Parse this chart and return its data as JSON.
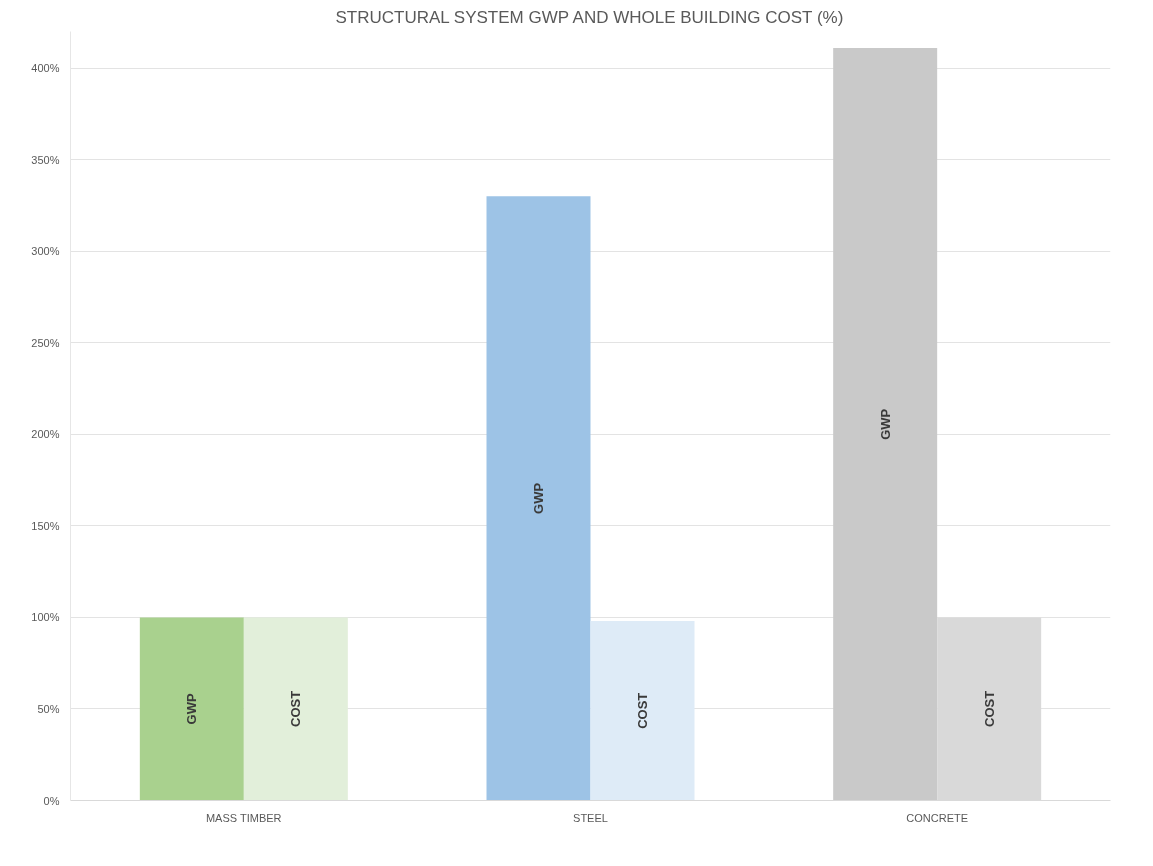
{
  "chart_data": {
    "type": "bar",
    "title": "STRUCTURAL SYSTEM GWP AND WHOLE BUILDING COST (%)",
    "categories": [
      "MASS TIMBER",
      "STEEL",
      "CONCRETE"
    ],
    "series": [
      {
        "name": "GWP",
        "colors": [
          "#a9d18e",
          "#9dc3e6",
          "#c9c9c9"
        ],
        "values": [
          100,
          330,
          411
        ]
      },
      {
        "name": "COST",
        "colors": [
          "#e2efda",
          "#deebf7",
          "#d9d9d9"
        ],
        "values": [
          100,
          98,
          100
        ]
      }
    ],
    "ylim": [
      0,
      420
    ],
    "yticks": [
      {
        "value": 0,
        "label": "0%"
      },
      {
        "value": 50,
        "label": "50%"
      },
      {
        "value": 100,
        "label": "100%"
      },
      {
        "value": 150,
        "label": "150%"
      },
      {
        "value": 200,
        "label": "200%"
      },
      {
        "value": 250,
        "label": "250%"
      },
      {
        "value": 300,
        "label": "300%"
      },
      {
        "value": 350,
        "label": "350%"
      },
      {
        "value": 400,
        "label": "400%"
      }
    ],
    "grid": "y"
  }
}
